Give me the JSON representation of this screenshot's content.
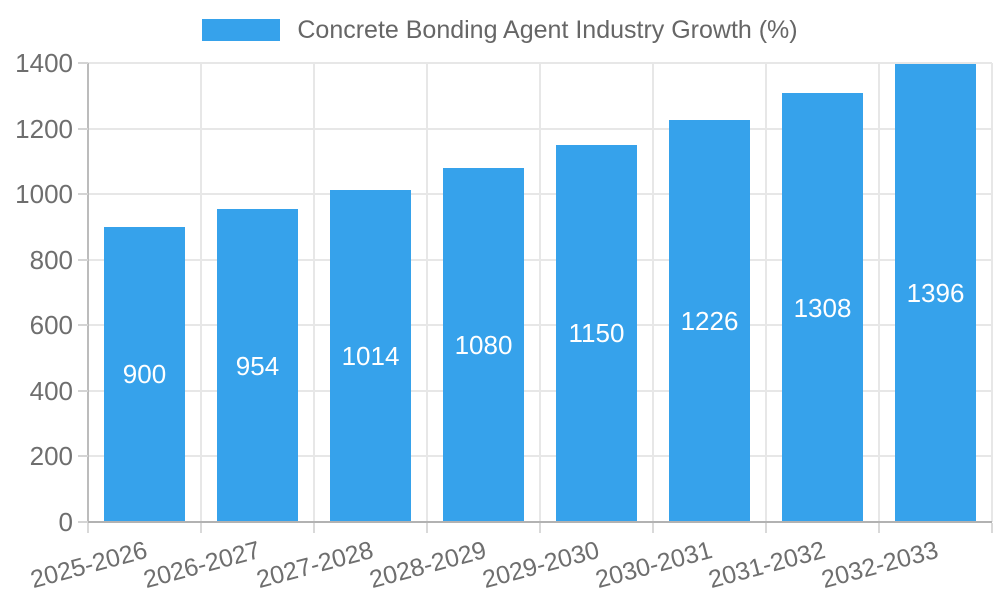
{
  "chart_data": {
    "type": "bar",
    "title": "Concrete Bonding Agent Industry Growth (%)",
    "categories": [
      "2025-2026",
      "2026-2027",
      "2027-2028",
      "2028-2029",
      "2029-2030",
      "2030-2031",
      "2031-2032",
      "2032-2033"
    ],
    "values": [
      900,
      954,
      1014,
      1080,
      1150,
      1226,
      1308,
      1396
    ],
    "xlabel": "",
    "ylabel": "",
    "ylim": [
      0,
      1400
    ],
    "ytick_step": 200,
    "ytick_labels": [
      "0",
      "200",
      "400",
      "600",
      "800",
      "1000",
      "1200",
      "1400"
    ],
    "grid": true,
    "legend_position": "top",
    "value_labels_position": "inside-center",
    "colors": {
      "bar": "#36a2eb",
      "value_label": "#ffffff",
      "axis_text": "#6e6e6e",
      "grid_line": "#e7e7e7",
      "axis_line": "#b2b2b2"
    }
  }
}
